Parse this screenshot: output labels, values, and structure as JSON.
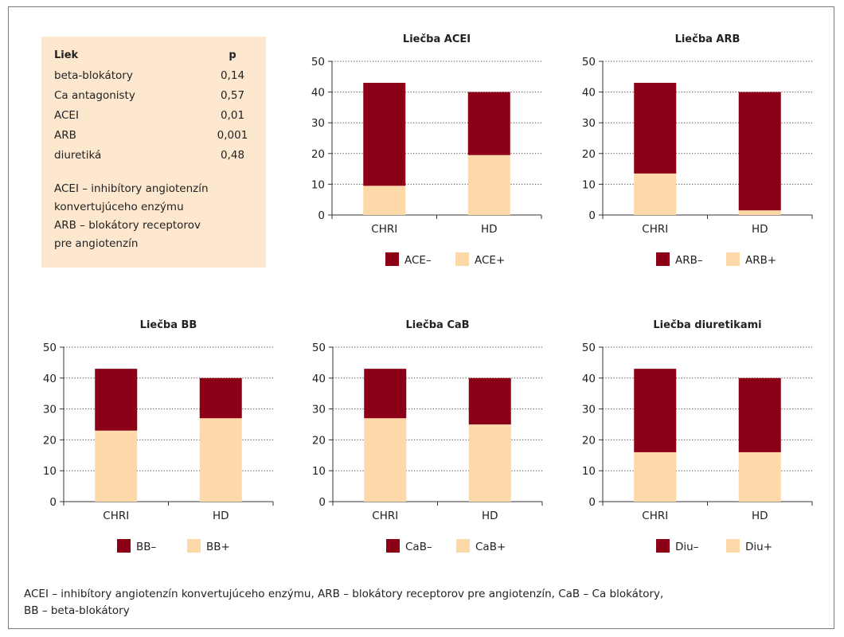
{
  "ptable": {
    "header_drug": "Liek",
    "header_p": "p",
    "rows": [
      {
        "drug": "beta-blokátory",
        "p": "0,14"
      },
      {
        "drug": "Ca antagonisty",
        "p": "0,57"
      },
      {
        "drug": "ACEI",
        "p": "0,01"
      },
      {
        "drug": "ARB",
        "p": "0,001"
      },
      {
        "drug": "diuretiká",
        "p": "0,48"
      }
    ],
    "note_lines": [
      "ACEI – inhibítory angiotenzín",
      "konvertujúceho enzýmu",
      "ARB – blokátory receptorov",
      "pre angiotenzín"
    ]
  },
  "colors": {
    "negative": "#8b0016",
    "positive": "#fdd9aa",
    "frame": "#7a7a7a",
    "table_bg": "#fde8cf"
  },
  "chart_data": [
    {
      "type": "bar",
      "stacked": true,
      "title": "Liečba ACEI",
      "categories": [
        "CHRI",
        "HD"
      ],
      "ylim": [
        0,
        50
      ],
      "yticks": [
        "0",
        "10",
        "20",
        "30",
        "40",
        "50"
      ],
      "grid": true,
      "legend": "bottom",
      "series": [
        {
          "name": "ACE+",
          "values": [
            9.5,
            19.5
          ]
        },
        {
          "name": "ACE–",
          "values": [
            33.5,
            20.5
          ]
        }
      ]
    },
    {
      "type": "bar",
      "stacked": true,
      "title": "Liečba ARB",
      "categories": [
        "CHRI",
        "HD"
      ],
      "ylim": [
        0,
        50
      ],
      "yticks": [
        "0",
        "10",
        "20",
        "30",
        "40",
        "50"
      ],
      "grid": true,
      "legend": "bottom",
      "series": [
        {
          "name": "ARB+",
          "values": [
            13.5,
            1.5
          ]
        },
        {
          "name": "ARB–",
          "values": [
            29.5,
            38.5
          ]
        }
      ]
    },
    {
      "type": "bar",
      "stacked": true,
      "title": "Liečba BB",
      "categories": [
        "CHRI",
        "HD"
      ],
      "ylim": [
        0,
        50
      ],
      "yticks": [
        "0",
        "10",
        "20",
        "30",
        "40",
        "50"
      ],
      "grid": true,
      "legend": "bottom",
      "series": [
        {
          "name": "BB+",
          "values": [
            23,
            27
          ]
        },
        {
          "name": "BB–",
          "values": [
            20,
            13
          ]
        }
      ]
    },
    {
      "type": "bar",
      "stacked": true,
      "title": "Liečba CaB",
      "categories": [
        "CHRI",
        "HD"
      ],
      "ylim": [
        0,
        50
      ],
      "yticks": [
        "0",
        "10",
        "20",
        "30",
        "40",
        "50"
      ],
      "grid": true,
      "legend": "bottom",
      "series": [
        {
          "name": "CaB+",
          "values": [
            27,
            25
          ]
        },
        {
          "name": "CaB–",
          "values": [
            16,
            15
          ]
        }
      ]
    },
    {
      "type": "bar",
      "stacked": true,
      "title": "Liečba diuretikami",
      "categories": [
        "CHRI",
        "HD"
      ],
      "ylim": [
        0,
        50
      ],
      "yticks": [
        "0",
        "10",
        "20",
        "30",
        "40",
        "50"
      ],
      "grid": true,
      "legend": "bottom",
      "series": [
        {
          "name": "Diu+",
          "values": [
            16,
            16
          ]
        },
        {
          "name": "Diu–",
          "values": [
            27,
            24
          ]
        }
      ]
    }
  ],
  "footnote": [
    "ACEI – inhibítory angiotenzín konvertujúceho enzýmu, ARB – blokátory receptorov pre angiotenzín, CaB – Ca blokátory,",
    "BB – beta-blokátory"
  ]
}
